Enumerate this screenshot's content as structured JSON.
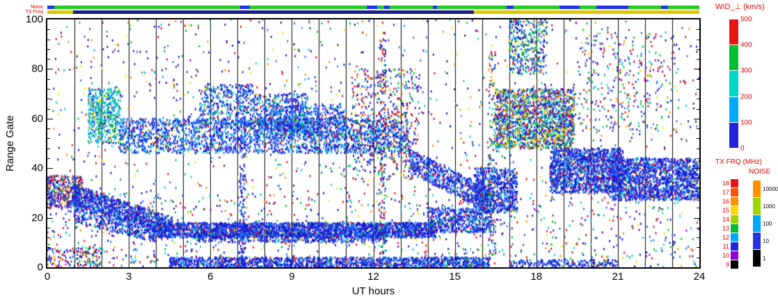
{
  "style": {
    "annotation_red": "#e00000",
    "plot_background": "#ffffff"
  },
  "strips": {
    "noise_label": "Noise",
    "txfreq_label": "TX Freq",
    "noise_segments": [
      [
        0,
        0.25,
        "#2233ee"
      ],
      [
        0.25,
        7.1,
        "#22cc22"
      ],
      [
        7.1,
        7.45,
        "#2233ee"
      ],
      [
        7.45,
        11.75,
        "#22cc22"
      ],
      [
        11.75,
        12.15,
        "#2233ee"
      ],
      [
        12.15,
        12.4,
        "#22cc22"
      ],
      [
        12.4,
        12.6,
        "#2233ee"
      ],
      [
        12.6,
        14.2,
        "#22cc22"
      ],
      [
        14.2,
        14.35,
        "#2233ee"
      ],
      [
        14.35,
        16.9,
        "#22cc22"
      ],
      [
        16.9,
        17.15,
        "#2233ee"
      ],
      [
        17.15,
        18.85,
        "#22cc22"
      ],
      [
        18.85,
        19.6,
        "#2233ee"
      ],
      [
        19.6,
        20.2,
        "#22cc22"
      ],
      [
        20.2,
        21.4,
        "#2233ee"
      ],
      [
        21.4,
        22.6,
        "#22cc22"
      ],
      [
        22.6,
        22.85,
        "#2233ee"
      ],
      [
        22.85,
        24,
        "#22cc22"
      ]
    ],
    "txfreq_segments": [
      [
        0,
        0.95,
        "#e0c800",
        true
      ],
      [
        0.95,
        15.7,
        "#1c1c8c",
        false
      ],
      [
        15.7,
        24,
        "#e0c800",
        true
      ]
    ]
  },
  "chart_data": {
    "type": "heatmap",
    "title": "WID_⊥ (km/s)",
    "xlabel": "UT hours",
    "ylabel": "Range Gate",
    "xlim": [
      0,
      24
    ],
    "ylim": [
      0,
      100
    ],
    "xticks": [
      0,
      3,
      6,
      9,
      12,
      15,
      18,
      21,
      24
    ],
    "yticks": [
      0,
      20,
      40,
      60,
      80,
      100
    ],
    "grid": "vertical black line every 1 hour",
    "value_units": "km/s",
    "value_range": [
      0,
      500
    ],
    "seed": 1337,
    "colorbars": {
      "wid": {
        "title": "WID_⊥ (km/s)",
        "tick_labels_top_to_bottom": [
          "500",
          "400",
          "300",
          "200",
          "100",
          "0"
        ],
        "segment_colors_top_to_bottom": [
          "#e81414",
          "#00c030",
          "#00d8c8",
          "#00a8ff",
          "#2222dd"
        ]
      },
      "txfrq": {
        "title": "TX FRQ (MHz)",
        "tick_labels_top_to_bottom": [
          "18",
          "17",
          "16",
          "15",
          "14",
          "13",
          "12",
          "11",
          "10",
          "9"
        ],
        "segment_colors_top_to_bottom": [
          "#e81414",
          "#ff5000",
          "#ff9100",
          "#ffd800",
          "#9ed400",
          "#00bb33",
          "#00a8ff",
          "#2222dd",
          "#9400d3",
          "#000000"
        ]
      },
      "noise": {
        "title": "NOISE",
        "tick_labels_top_to_bottom": [
          "10000",
          "1000",
          "100",
          "10",
          "1"
        ],
        "segment_colors_top_to_bottom": [
          "#ff9100",
          "#9ed400",
          "#00a8ff",
          "#2233dd",
          "#000000"
        ]
      }
    },
    "palettes": {
      "sparse": [
        [
          "#1a1ad0",
          28
        ],
        [
          "#2e6bff",
          10
        ],
        [
          "#e81414",
          18
        ],
        [
          "#00bb33",
          12
        ],
        [
          "#00cfcf",
          10
        ],
        [
          "#ff9100",
          7
        ],
        [
          "#e8e800",
          6
        ],
        [
          "#9400d3",
          4
        ],
        [
          "#00a8ff",
          5
        ]
      ],
      "dense_blue": [
        [
          "#1a1ad0",
          62
        ],
        [
          "#2e6bff",
          20
        ],
        [
          "#00a8ff",
          6
        ],
        [
          "#00cfcf",
          4
        ],
        [
          "#e81414",
          4
        ],
        [
          "#00bb33",
          2
        ],
        [
          "#ff9100",
          1
        ],
        [
          "#e8e800",
          1
        ]
      ],
      "blue_cyan": [
        [
          "#1a1ad0",
          46
        ],
        [
          "#2e6bff",
          22
        ],
        [
          "#00a8ff",
          12
        ],
        [
          "#00cfcf",
          10
        ],
        [
          "#00bb33",
          4
        ],
        [
          "#e81414",
          3
        ],
        [
          "#e8e800",
          2
        ],
        [
          "#ff9100",
          1
        ]
      ],
      "cyan_green": [
        [
          "#00cfcf",
          32
        ],
        [
          "#00bb33",
          22
        ],
        [
          "#00a8ff",
          18
        ],
        [
          "#2e6bff",
          12
        ],
        [
          "#e8e800",
          8
        ],
        [
          "#1a1ad0",
          8
        ]
      ],
      "blue_red": [
        [
          "#1a1ad0",
          40
        ],
        [
          "#e81414",
          26
        ],
        [
          "#2e6bff",
          10
        ],
        [
          "#00cfcf",
          7
        ],
        [
          "#00bb33",
          7
        ],
        [
          "#ff9100",
          5
        ],
        [
          "#e8e800",
          5
        ]
      ],
      "rainbow": [
        [
          "#1a1ad0",
          30
        ],
        [
          "#2e6bff",
          12
        ],
        [
          "#00cfcf",
          13
        ],
        [
          "#00bb33",
          16
        ],
        [
          "#e8e800",
          10
        ],
        [
          "#ff9100",
          9
        ],
        [
          "#e81414",
          10
        ]
      ],
      "blue_green": [
        [
          "#1a1ad0",
          40
        ],
        [
          "#00bb33",
          22
        ],
        [
          "#00cfcf",
          14
        ],
        [
          "#2e6bff",
          10
        ],
        [
          "#e81414",
          7
        ],
        [
          "#e8e800",
          7
        ]
      ]
    },
    "bands": [
      {
        "t0": 0,
        "t1": 24,
        "g0": 0,
        "g1": 100,
        "n": 1500,
        "p": "sparse"
      },
      {
        "t0": 0,
        "t1": 24,
        "g0": 0,
        "g1": 30,
        "n": 500,
        "p": "sparse"
      },
      {
        "t0": 0.0,
        "t1": 1.3,
        "g0": 24,
        "g1": 37,
        "n": 420,
        "p": "blue_red"
      },
      {
        "t0": 0.9,
        "t1": 4.6,
        "g0": 26,
        "g1": 34,
        "g0b": 13,
        "g1b": 20,
        "n": 900,
        "p": "dense_blue"
      },
      {
        "t0": 1.0,
        "t1": 4.0,
        "g0": 18,
        "g1": 26,
        "g0b": 10,
        "g1b": 16,
        "n": 400,
        "p": "dense_blue"
      },
      {
        "t0": 4.0,
        "t1": 14.3,
        "g0": 12,
        "g1": 18,
        "n": 2800,
        "p": "dense_blue"
      },
      {
        "t0": 5.5,
        "t1": 12.5,
        "g0": 10,
        "g1": 14,
        "n": 500,
        "p": "dense_blue"
      },
      {
        "t0": 14.0,
        "t1": 16.4,
        "g0": 14,
        "g1": 24,
        "n": 550,
        "p": "dense_blue"
      },
      {
        "t0": 4.5,
        "t1": 16.3,
        "g0": 0,
        "g1": 4,
        "n": 1500,
        "p": "dense_blue"
      },
      {
        "t0": 17.0,
        "t1": 21.0,
        "g0": 0,
        "g1": 3,
        "n": 200,
        "p": "dense_blue"
      },
      {
        "t0": 0.0,
        "t1": 2.0,
        "g0": 0,
        "g1": 8,
        "n": 150,
        "p": "blue_red"
      },
      {
        "t0": 2.6,
        "t1": 13.3,
        "g0": 46,
        "g1": 60,
        "n": 2300,
        "p": "blue_cyan"
      },
      {
        "t0": 1.5,
        "t1": 2.7,
        "g0": 50,
        "g1": 72,
        "n": 450,
        "p": "cyan_green"
      },
      {
        "t0": 5.6,
        "t1": 7.6,
        "g0": 58,
        "g1": 74,
        "n": 380,
        "p": "blue_cyan"
      },
      {
        "t0": 7.6,
        "t1": 9.6,
        "g0": 55,
        "g1": 70,
        "n": 420,
        "p": "blue_cyan"
      },
      {
        "t0": 8.0,
        "t1": 11.0,
        "g0": 52,
        "g1": 66,
        "n": 500,
        "p": "blue_cyan"
      },
      {
        "t0": 11.2,
        "t1": 13.7,
        "g0": 35,
        "g1": 80,
        "n": 480,
        "p": "blue_red"
      },
      {
        "t0": 12.2,
        "t1": 12.45,
        "g0": 5,
        "g1": 95,
        "n": 160,
        "p": "blue_red"
      },
      {
        "t0": 7.05,
        "t1": 7.3,
        "g0": 0,
        "g1": 60,
        "n": 140,
        "p": "dense_blue"
      },
      {
        "t0": 13.3,
        "t1": 16.3,
        "g0": 38,
        "g1": 48,
        "g0b": 22,
        "g1b": 32,
        "n": 700,
        "p": "dense_blue"
      },
      {
        "t0": 15.7,
        "t1": 17.3,
        "g0": 22,
        "g1": 40,
        "n": 650,
        "p": "dense_blue"
      },
      {
        "t0": 16.25,
        "t1": 16.5,
        "g0": 5,
        "g1": 90,
        "n": 150,
        "p": "rainbow"
      },
      {
        "t0": 16.5,
        "t1": 19.4,
        "g0": 48,
        "g1": 72,
        "n": 1700,
        "p": "rainbow"
      },
      {
        "t0": 17.0,
        "t1": 18.4,
        "g0": 78,
        "g1": 100,
        "n": 350,
        "p": "blue_green"
      },
      {
        "t0": 18.5,
        "t1": 21.2,
        "g0": 30,
        "g1": 48,
        "n": 1500,
        "p": "dense_blue"
      },
      {
        "t0": 20.8,
        "t1": 24.0,
        "g0": 27,
        "g1": 44,
        "n": 1500,
        "p": "dense_blue"
      },
      {
        "t0": 19.5,
        "t1": 23.2,
        "g0": 55,
        "g1": 95,
        "n": 300,
        "p": "sparse"
      }
    ]
  }
}
